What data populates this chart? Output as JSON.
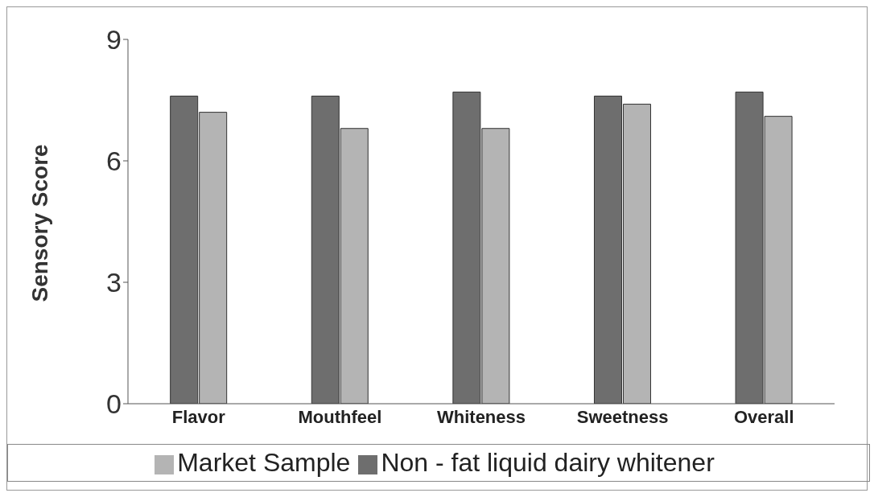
{
  "chart_data": {
    "type": "bar",
    "ylabel": "Sensory Score",
    "categories": [
      "Flavor",
      "Mouthfeel",
      "Whiteness",
      "Sweetness",
      "Overall"
    ],
    "series": [
      {
        "name": "Non - fat liquid dairy whitener",
        "color": "#6e6e6e",
        "values": [
          7.6,
          7.6,
          7.7,
          7.6,
          7.7
        ]
      },
      {
        "name": "Market Sample",
        "color": "#b4b4b4",
        "values": [
          7.2,
          6.8,
          6.8,
          7.4,
          7.1
        ]
      }
    ],
    "ylim": [
      0,
      9
    ],
    "yticks": [
      0,
      3,
      6,
      9
    ],
    "grid": false,
    "legend": "bottom"
  }
}
